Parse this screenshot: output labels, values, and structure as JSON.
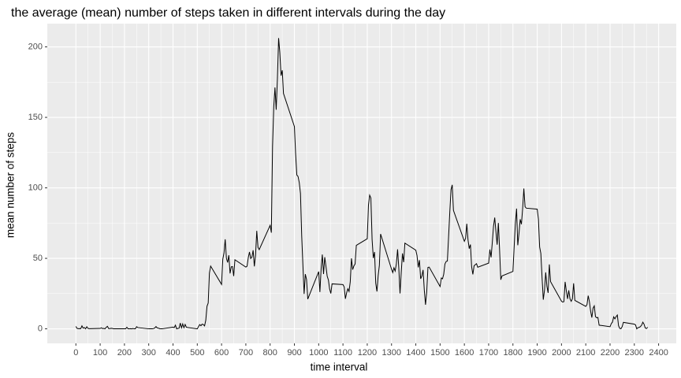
{
  "chart_data": {
    "type": "line",
    "title": "the average (mean) number of steps taken in different intervals during the day",
    "x_label": "time interval",
    "y_label": "mean number of steps",
    "x": [
      0,
      5,
      10,
      15,
      20,
      25,
      30,
      35,
      40,
      45,
      50,
      55,
      100,
      105,
      110,
      115,
      120,
      125,
      130,
      135,
      140,
      145,
      150,
      155,
      200,
      205,
      210,
      215,
      220,
      225,
      230,
      235,
      240,
      245,
      250,
      255,
      300,
      305,
      310,
      315,
      320,
      325,
      330,
      335,
      340,
      345,
      350,
      355,
      400,
      405,
      410,
      415,
      420,
      425,
      430,
      435,
      440,
      445,
      450,
      455,
      500,
      505,
      510,
      515,
      520,
      525,
      530,
      535,
      540,
      545,
      550,
      555,
      600,
      605,
      610,
      615,
      620,
      625,
      630,
      635,
      640,
      645,
      650,
      655,
      700,
      705,
      710,
      715,
      720,
      725,
      730,
      735,
      740,
      745,
      750,
      755,
      800,
      805,
      810,
      815,
      820,
      825,
      830,
      835,
      840,
      845,
      850,
      855,
      900,
      905,
      910,
      915,
      920,
      925,
      930,
      935,
      940,
      945,
      950,
      955,
      1000,
      1005,
      1010,
      1015,
      1020,
      1025,
      1030,
      1035,
      1040,
      1045,
      1050,
      1055,
      1100,
      1105,
      1110,
      1115,
      1120,
      1125,
      1130,
      1135,
      1140,
      1145,
      1150,
      1155,
      1200,
      1205,
      1210,
      1215,
      1220,
      1225,
      1230,
      1235,
      1240,
      1245,
      1250,
      1255,
      1300,
      1305,
      1310,
      1315,
      1320,
      1325,
      1330,
      1335,
      1340,
      1345,
      1350,
      1355,
      1400,
      1405,
      1410,
      1415,
      1420,
      1425,
      1430,
      1435,
      1440,
      1445,
      1450,
      1455,
      1500,
      1505,
      1510,
      1515,
      1520,
      1525,
      1530,
      1535,
      1540,
      1545,
      1550,
      1555,
      1600,
      1605,
      1610,
      1615,
      1620,
      1625,
      1630,
      1635,
      1640,
      1645,
      1650,
      1655,
      1700,
      1705,
      1710,
      1715,
      1720,
      1725,
      1730,
      1735,
      1740,
      1745,
      1750,
      1755,
      1800,
      1805,
      1810,
      1815,
      1820,
      1825,
      1830,
      1835,
      1840,
      1845,
      1850,
      1855,
      1900,
      1905,
      1910,
      1915,
      1920,
      1925,
      1930,
      1935,
      1940,
      1945,
      1950,
      1955,
      2000,
      2005,
      2010,
      2015,
      2020,
      2025,
      2030,
      2035,
      2040,
      2045,
      2050,
      2055,
      2100,
      2105,
      2110,
      2115,
      2120,
      2125,
      2130,
      2135,
      2140,
      2145,
      2150,
      2155,
      2200,
      2205,
      2210,
      2215,
      2220,
      2225,
      2230,
      2235,
      2240,
      2245,
      2250,
      2255,
      2300,
      2305,
      2310,
      2315,
      2320,
      2325,
      2330,
      2335,
      2340,
      2345,
      2350,
      2355
    ],
    "series": [
      {
        "color": "#000000",
        "values": [
          1.7,
          0.3,
          0.1,
          0.2,
          0.1,
          2.1,
          0.5,
          0.9,
          0,
          1.5,
          0.3,
          0.1,
          0.3,
          0.7,
          0.2,
          0.3,
          0,
          1.1,
          1.8,
          0.2,
          0.2,
          0.4,
          0.3,
          0,
          0,
          0,
          1.1,
          0,
          0,
          0.1,
          0,
          0.2,
          0,
          0,
          1.5,
          0.9,
          0,
          0,
          0,
          0,
          0.2,
          0.6,
          1.6,
          0.6,
          0.5,
          0.1,
          0,
          0,
          1.2,
          0.9,
          2.6,
          0,
          0.3,
          0.4,
          4.1,
          0.7,
          3.5,
          0.8,
          3.1,
          1.1,
          0,
          1.6,
          3.0,
          2.2,
          3.3,
          3.0,
          2.1,
          6.1,
          16.0,
          18.3,
          39.5,
          44.5,
          31.5,
          49.3,
          53.8,
          63.5,
          50.0,
          47.1,
          52.2,
          39.3,
          44.0,
          44.2,
          37.4,
          49.0,
          43.8,
          44.4,
          50.5,
          54.5,
          49.9,
          50.9,
          55.7,
          44.3,
          52.3,
          69.5,
          57.8,
          56.2,
          73.4,
          68.2,
          129.4,
          157.5,
          171.2,
          155.4,
          177.3,
          206.2,
          195.9,
          179.6,
          183.4,
          167.0,
          143.5,
          124.0,
          109.1,
          108.1,
          103.7,
          96.0,
          66.2,
          45.2,
          24.8,
          38.8,
          35.0,
          21.1,
          40.6,
          26.1,
          42.4,
          52.7,
          38.9,
          50.8,
          44.3,
          37.4,
          34.7,
          28.3,
          25.1,
          31.9,
          31.4,
          29.7,
          21.3,
          25.5,
          28.4,
          26.5,
          33.4,
          50.0,
          42.0,
          44.6,
          46.0,
          59.2,
          63.9,
          87.7,
          94.8,
          92.8,
          63.4,
          50.2,
          54.5,
          32.4,
          26.5,
          37.7,
          45.1,
          67.3,
          42.3,
          39.9,
          43.3,
          41.0,
          46.2,
          56.4,
          42.8,
          25.1,
          40.0,
          53.5,
          47.3,
          60.8,
          55.8,
          52.0,
          43.6,
          48.7,
          35.5,
          37.5,
          41.8,
          27.5,
          17.1,
          26.1,
          43.6,
          43.8,
          30.0,
          36.1,
          35.5,
          38.8,
          46.0,
          47.8,
          48.1,
          65.3,
          82.9,
          98.7,
          102.1,
          84.0,
          62.1,
          64.1,
          74.5,
          63.2,
          56.9,
          59.8,
          43.9,
          38.6,
          44.7,
          45.5,
          46.2,
          43.7,
          46.6,
          56.3,
          50.7,
          61.2,
          72.7,
          78.9,
          68.9,
          59.7,
          75.1,
          56.5,
          34.8,
          37.5,
          40.7,
          58.0,
          74.7,
          85.3,
          59.3,
          67.8,
          77.7,
          74.2,
          85.3,
          99.5,
          86.6,
          85.6,
          84.9,
          77.8,
          58.0,
          53.4,
          36.3,
          20.7,
          27.4,
          40.0,
          30.2,
          25.5,
          45.7,
          33.5,
          19.6,
          19.0,
          19.3,
          33.3,
          26.8,
          21.2,
          27.3,
          21.3,
          19.5,
          21.3,
          32.3,
          20.2,
          15.9,
          17.2,
          23.5,
          19.2,
          12.5,
          8.0,
          14.7,
          16.3,
          8.7,
          7.8,
          8.1,
          2.6,
          1.5,
          3.7,
          4.8,
          8.5,
          7.1,
          8.7,
          9.8,
          2.2,
          0.3,
          0.1,
          1.6,
          4.6,
          3.3,
          2.8,
          0,
          0.8,
          1.0,
          1.6,
          2.6,
          4.7,
          3.3,
          0.6,
          0.2,
          1.1
        ]
      }
    ],
    "xlim": [
      -117.75,
      2472.75
    ],
    "ylim": [
      -10.3,
      216.5
    ],
    "xticks": [
      0,
      100,
      200,
      300,
      400,
      500,
      600,
      700,
      800,
      900,
      1000,
      1100,
      1200,
      1300,
      1400,
      1500,
      1600,
      1700,
      1800,
      1900,
      2000,
      2100,
      2200,
      2300,
      2400
    ],
    "yticks": [
      0,
      50,
      100,
      150,
      200
    ],
    "grid": true
  }
}
